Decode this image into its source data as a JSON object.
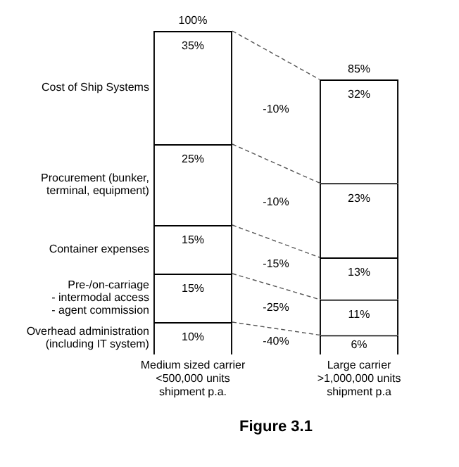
{
  "chart_data": {
    "type": "bar",
    "stacked": true,
    "title": "Figure 3.1",
    "categories": [
      "Medium sized carrier\n<500,000 units\nshipment p.a.",
      "Large carrier\n>1,000,000 units\nshipment p.a"
    ],
    "series": [
      {
        "name": "Overhead administration\n(including IT system)",
        "color": "#ffffff",
        "values": [
          10,
          6
        ],
        "value_labels": [
          "10%",
          "6%"
        ]
      },
      {
        "name": "Pre-/on-carriage\n  - intermodal access\n  - agent commission",
        "color": "#ffffff",
        "values": [
          15,
          11
        ],
        "value_labels": [
          "15%",
          "11%"
        ]
      },
      {
        "name": "Container expenses",
        "color": "#ffffff",
        "values": [
          15,
          13
        ],
        "value_labels": [
          "15%",
          "13%"
        ]
      },
      {
        "name": "Procurement (bunker,\nterminal, equipment)",
        "color": "#ffffff",
        "values": [
          25,
          23
        ],
        "value_labels": [
          "25%",
          "23%"
        ]
      },
      {
        "name": "Cost of Ship Systems",
        "color": "#ffffff",
        "values": [
          35,
          32
        ],
        "value_labels": [
          "35%",
          "32%"
        ]
      }
    ],
    "totals": [
      "100%",
      "85%"
    ],
    "annotations": [
      "-40%",
      "-25%",
      "-15%",
      "-10%",
      "-10%"
    ],
    "grid": false,
    "legend": false
  }
}
